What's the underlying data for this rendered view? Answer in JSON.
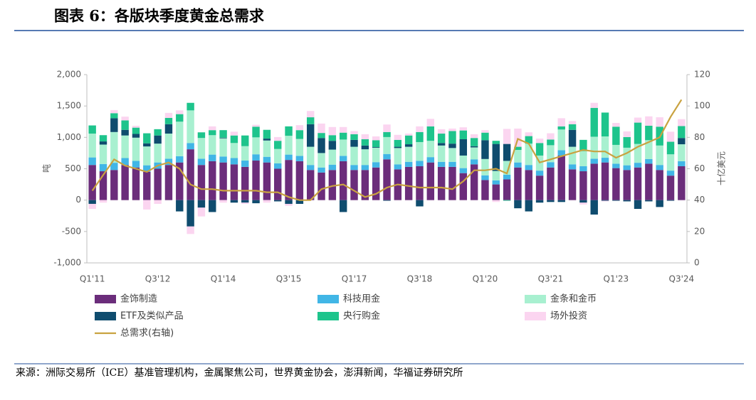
{
  "chart_data": {
    "type": "bar",
    "title": "图表 6：各版块季度黄金总需求",
    "source": "来源：洲际交易所（ICE）基准管理机构，金属聚焦公司，世界黄金协会，澎湃新闻，华福证券研究所",
    "ylabel": "吨",
    "y2label": "十亿美元",
    "categories": [
      "Q1'11",
      null,
      null,
      null,
      null,
      null,
      "Q3'12",
      null,
      null,
      null,
      null,
      null,
      "Q1'14",
      null,
      null,
      null,
      null,
      null,
      "Q3'15",
      null,
      null,
      null,
      null,
      null,
      "Q1'17",
      null,
      null,
      null,
      null,
      null,
      "Q3'18",
      null,
      null,
      null,
      null,
      null,
      "Q1'20",
      null,
      null,
      null,
      null,
      null,
      "Q3'21",
      null,
      null,
      null,
      null,
      null,
      "Q1'23",
      null,
      null,
      null,
      null,
      null,
      "Q3'24"
    ],
    "ylim": [
      -1000,
      2000
    ],
    "yticks": [
      {
        "value": -1000,
        "label": "-1,000"
      },
      -500,
      0,
      500,
      {
        "value": 1000,
        "label": "1,000"
      },
      {
        "value": 1500,
        "label": "1,500"
      },
      {
        "value": 2000,
        "label": "2,000"
      }
    ],
    "y2lim": [
      0,
      120
    ],
    "y2ticks": [
      0,
      20,
      40,
      60,
      80,
      100,
      120
    ],
    "grid": false,
    "series": [
      {
        "name": "金饰制造",
        "color": "#6b2d7b",
        "values": [
          560,
          460,
          480,
          560,
          520,
          450,
          500,
          560,
          600,
          810,
          560,
          620,
          600,
          570,
          530,
          630,
          600,
          500,
          640,
          620,
          480,
          440,
          480,
          620,
          480,
          480,
          520,
          650,
          490,
          530,
          540,
          600,
          530,
          530,
          430,
          570,
          320,
          250,
          330,
          520,
          480,
          390,
          520,
          710,
          490,
          460,
          580,
          600,
          510,
          480,
          520,
          580,
          480,
          390,
          540
        ]
      },
      {
        "name": "科技用金",
        "color": "#41b6e6",
        "values": [
          120,
          115,
          115,
          110,
          105,
          105,
          100,
          100,
          100,
          100,
          100,
          105,
          95,
          100,
          100,
          100,
          90,
          85,
          85,
          85,
          80,
          80,
          85,
          85,
          80,
          80,
          85,
          85,
          80,
          80,
          85,
          85,
          80,
          80,
          80,
          80,
          75,
          65,
          75,
          80,
          80,
          80,
          85,
          85,
          80,
          80,
          80,
          75,
          70,
          75,
          75,
          75,
          80,
          80,
          80
        ]
      },
      {
        "name": "金条和金币",
        "color": "#a8f0d0",
        "values": [
          380,
          310,
          490,
          360,
          370,
          300,
          300,
          400,
          550,
          520,
          330,
          310,
          290,
          240,
          230,
          270,
          260,
          230,
          300,
          270,
          290,
          230,
          240,
          260,
          290,
          250,
          230,
          270,
          260,
          240,
          300,
          260,
          260,
          220,
          200,
          190,
          260,
          150,
          220,
          200,
          340,
          240,
          270,
          330,
          280,
          240,
          350,
          340,
          300,
          280,
          300,
          300,
          310,
          260,
          270
        ]
      },
      {
        "name": "ETF及类似产品",
        "color": "#0f4c6e",
        "values": [
          -60,
          50,
          220,
          90,
          60,
          50,
          130,
          150,
          -180,
          -420,
          -120,
          -190,
          10,
          -40,
          -40,
          -50,
          30,
          -20,
          -60,
          -60,
          360,
          240,
          140,
          -190,
          110,
          60,
          10,
          -10,
          20,
          40,
          -100,
          0,
          40,
          70,
          260,
          20,
          300,
          430,
          270,
          -130,
          -180,
          -40,
          -30,
          -30,
          270,
          -40,
          -230,
          -10,
          -10,
          -20,
          -140,
          -20,
          -110,
          -10,
          100
        ]
      },
      {
        "name": "央行购金",
        "color": "#1ec48c",
        "values": [
          130,
          100,
          80,
          150,
          100,
          160,
          100,
          100,
          120,
          120,
          90,
          80,
          120,
          120,
          170,
          170,
          140,
          130,
          150,
          140,
          110,
          80,
          90,
          110,
          90,
          100,
          110,
          80,
          110,
          140,
          160,
          230,
          150,
          200,
          140,
          130,
          120,
          50,
          -10,
          50,
          120,
          200,
          90,
          50,
          90,
          180,
          460,
          380,
          290,
          170,
          340,
          230,
          300,
          200,
          190
        ]
      },
      {
        "name": "场外投资",
        "color": "#fbd5f0",
        "values": [
          -80,
          -40,
          50,
          60,
          30,
          -150,
          -60,
          80,
          60,
          -120,
          -140,
          60,
          -40,
          60,
          -20,
          30,
          -40,
          60,
          -30,
          80,
          100,
          150,
          130,
          90,
          50,
          80,
          60,
          120,
          80,
          30,
          90,
          120,
          70,
          40,
          50,
          60,
          40,
          -30,
          240,
          290,
          60,
          70,
          100,
          130,
          50,
          -30,
          80,
          -10,
          60,
          90,
          80,
          150,
          150,
          160,
          110
        ]
      },
      {
        "name": "总需求(右轴)",
        "color": "#c9a240",
        "axis": "y2",
        "values": [
          46,
          56,
          66,
          62,
          60,
          58,
          62,
          64,
          60,
          50,
          47,
          47,
          46,
          46,
          46,
          46,
          45,
          45,
          42,
          40,
          40,
          47,
          49,
          50,
          46,
          42,
          44,
          48,
          50,
          49,
          48,
          48,
          48,
          47,
          52,
          59,
          59,
          60,
          57,
          79,
          76,
          64,
          66,
          68,
          70,
          72,
          71,
          71,
          67,
          70,
          74,
          77,
          80,
          93,
          104
        ]
      }
    ]
  }
}
